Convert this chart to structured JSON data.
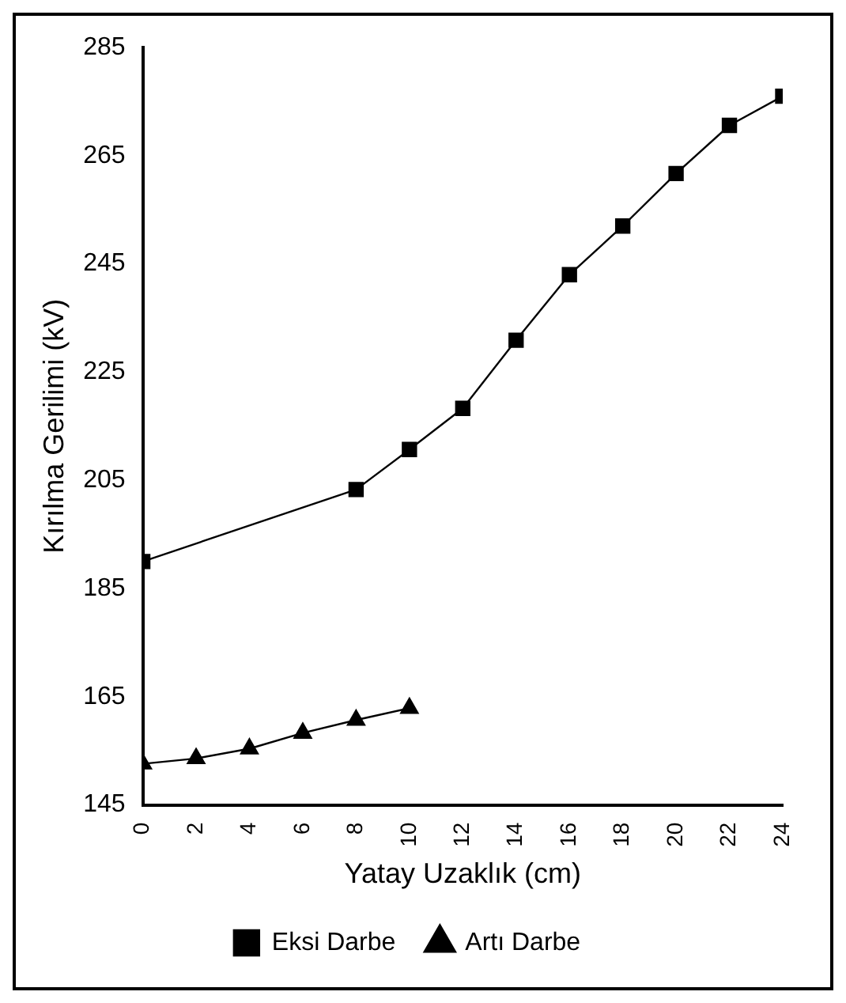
{
  "chart_data": {
    "type": "line",
    "xlabel": "Yatay Uzaklık (cm)",
    "ylabel": "Kırılma Gerilimi (kV)",
    "xlim": [
      0,
      24
    ],
    "xticks": [
      0,
      2,
      4,
      6,
      8,
      10,
      12,
      14,
      16,
      18,
      20,
      22,
      24
    ],
    "ylim": [
      145,
      285
    ],
    "yticks": [
      145,
      165,
      185,
      205,
      225,
      245,
      265,
      285
    ],
    "grid": false,
    "legend": "bottom",
    "series": [
      {
        "name": "Eksi Darbe",
        "color": "#000000",
        "marker": "square",
        "x": [
          0,
          8,
          10,
          12,
          14,
          16,
          18,
          20,
          22,
          24
        ],
        "values": [
          190,
          203.3,
          210.7,
          218.3,
          230.9,
          243,
          252,
          261.7,
          270.6,
          276
        ]
      },
      {
        "name": "Artı Darbe",
        "color": "#000000",
        "marker": "triangle",
        "x": [
          0,
          2,
          4,
          6,
          8,
          10
        ],
        "values": [
          152.6,
          153.6,
          155.4,
          158.3,
          160.7,
          162.9
        ]
      }
    ]
  }
}
